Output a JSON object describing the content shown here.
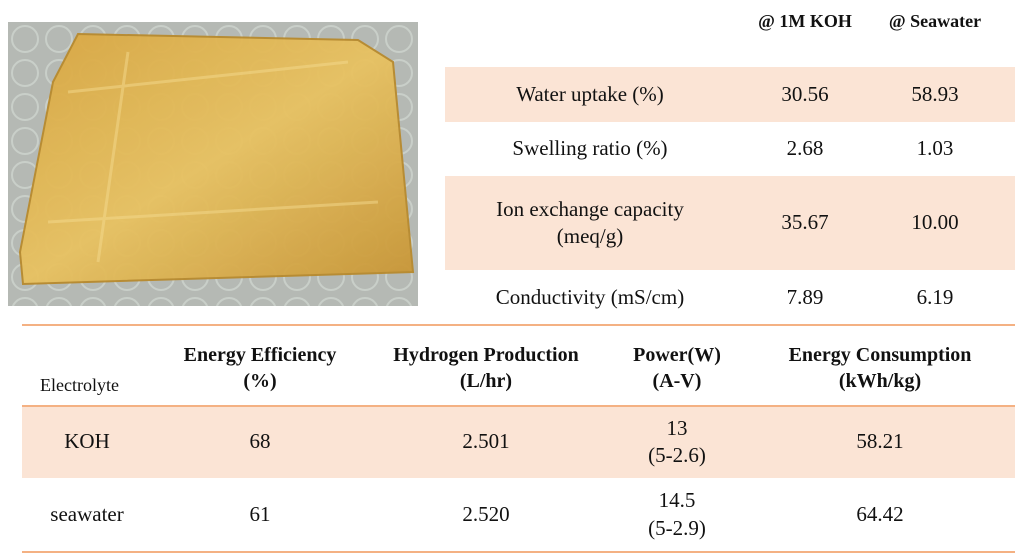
{
  "top_table": {
    "headers": [
      "@ 1M KOH",
      "@ Seawater"
    ],
    "rows": [
      [
        "Water uptake (%)",
        "30.56",
        "58.93"
      ],
      [
        "Swelling ratio (%)",
        "2.68",
        "1.03"
      ],
      [
        "Ion exchange capacity\n(meq/g)",
        "35.67",
        "10.00"
      ],
      [
        "Conductivity (mS/cm)",
        "7.89",
        "6.19"
      ]
    ]
  },
  "bottom_table": {
    "headers": [
      "Electrolyte",
      "Energy Efficiency\n(%)",
      "Hydrogen Production\n(L/hr)",
      "Power(W)\n(A-V)",
      "Energy Consumption\n(kWh/kg)"
    ],
    "rows": [
      [
        "KOH",
        "68",
        "2.501",
        "13\n(5-2.6)",
        "58.21"
      ],
      [
        "seawater",
        "61",
        "2.520",
        "14.5\n(5-2.9)",
        "64.42"
      ]
    ]
  }
}
